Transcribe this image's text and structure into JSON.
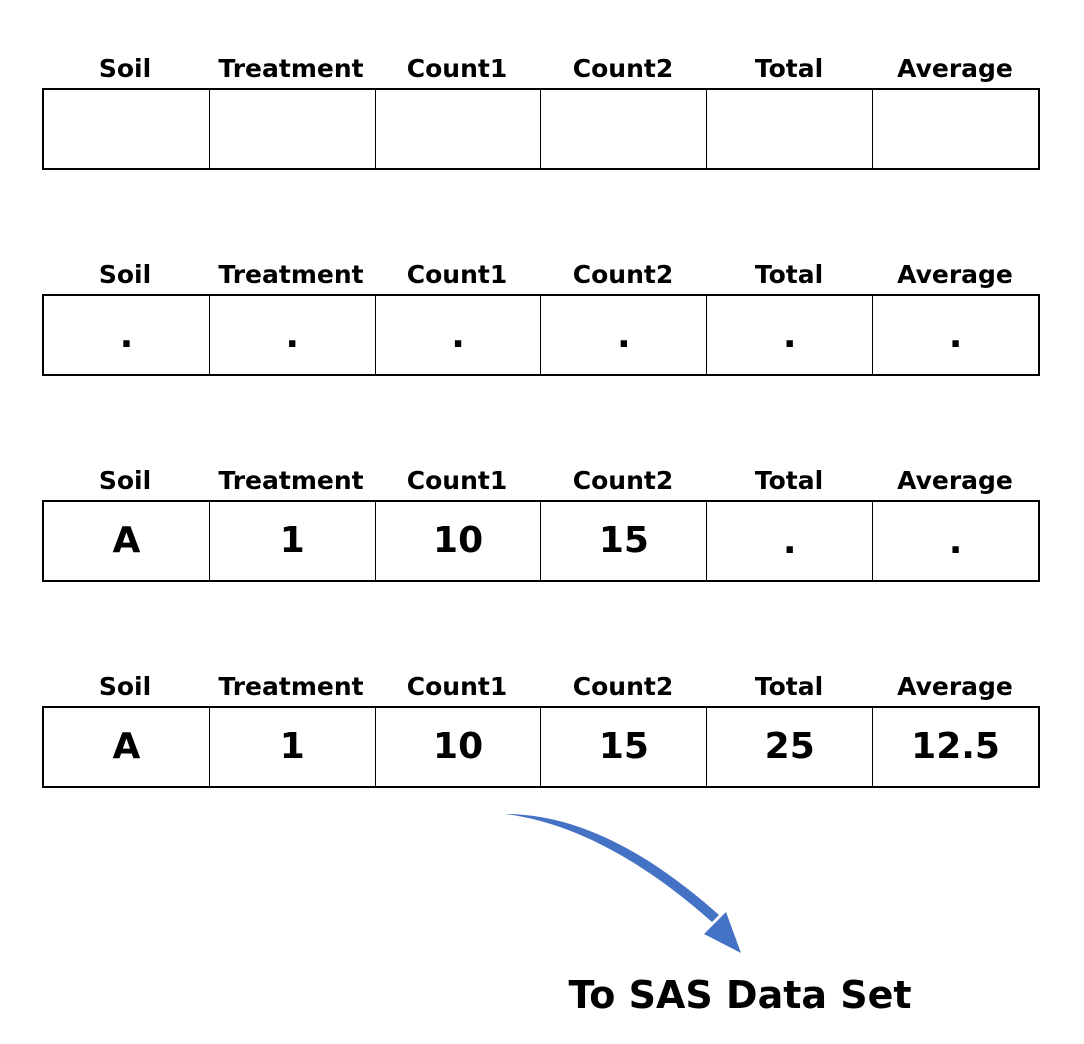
{
  "columns": [
    "Soil",
    "Treatment",
    "Count1",
    "Count2",
    "Total",
    "Average"
  ],
  "rows": [
    [
      "",
      "",
      "",
      "",
      "",
      ""
    ],
    [
      ".",
      ".",
      ".",
      ".",
      ".",
      "."
    ],
    [
      "A",
      "1",
      "10",
      "15",
      ".",
      "."
    ],
    [
      "A",
      "1",
      "10",
      "15",
      "25",
      "12.5"
    ]
  ],
  "caption": "To SAS Data Set",
  "colors": {
    "arrow": "#4472C4",
    "border": "#000000",
    "text": "#000000"
  }
}
